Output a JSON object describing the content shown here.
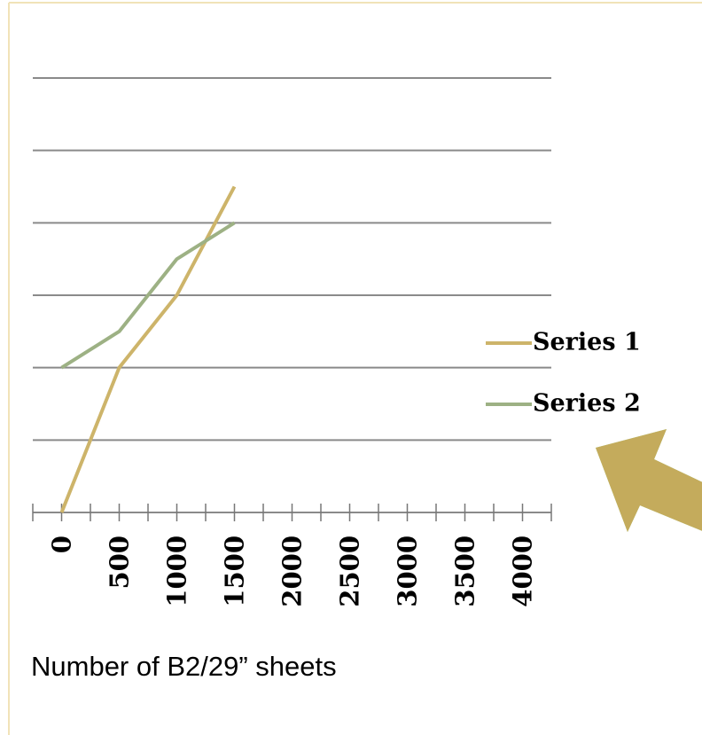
{
  "chart_data": {
    "type": "line",
    "x_label": "Number of B2/29” sheets",
    "x": [
      0,
      500,
      1000,
      1500
    ],
    "series": [
      {
        "name": "Series 1",
        "color": "#cdb46a",
        "values": [
          0,
          2,
          3,
          4.5
        ]
      },
      {
        "name": "Series 2",
        "color": "#9db184",
        "values": [
          2,
          2.5,
          3.5,
          4
        ]
      }
    ],
    "xlim": [
      -250,
      4250
    ],
    "xticks": [
      0,
      500,
      1000,
      1500,
      2000,
      2500,
      3000,
      3500,
      4000
    ],
    "xticks_minor": [
      -250,
      250,
      750,
      1250,
      1750,
      2250,
      2750,
      3250,
      3750,
      4250
    ],
    "ylim": [
      0,
      6
    ],
    "yticks": [
      1,
      2,
      3,
      4,
      5,
      6
    ],
    "grid": true,
    "legend": "right"
  }
}
